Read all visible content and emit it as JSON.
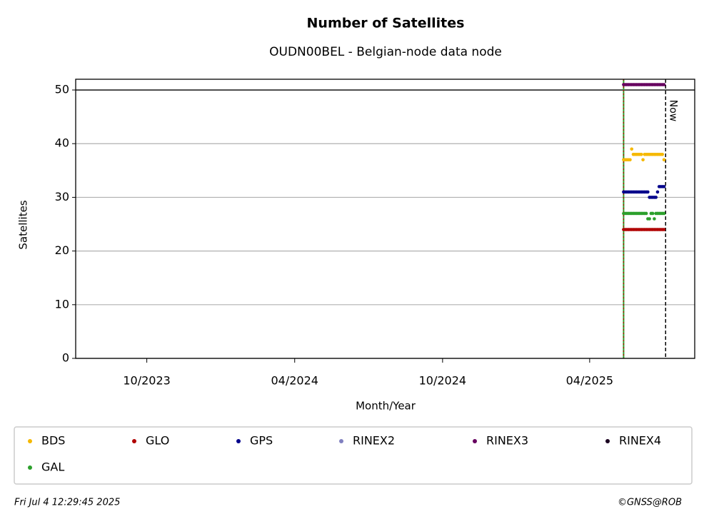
{
  "chart_data": {
    "type": "scatter",
    "title": "Number of Satellites",
    "subtitle": "OUDN00BEL - Belgian-node data node",
    "x_label": "Month/Year",
    "y_label": "Satellites",
    "xlim": [
      "2023-07-05",
      "2025-08-09"
    ],
    "xticks": [
      {
        "value": "2023-10-01",
        "label": "10/2023"
      },
      {
        "value": "2024-04-01",
        "label": "04/2024"
      },
      {
        "value": "2024-10-01",
        "label": "10/2024"
      },
      {
        "value": "2025-04-01",
        "label": "04/2025"
      }
    ],
    "ylim": [
      0,
      52
    ],
    "yticks": [
      0,
      10,
      20,
      30,
      40,
      50
    ],
    "grid": true,
    "hline": 50,
    "start_line": "2025-05-13",
    "now_line": "2025-07-04",
    "now_label": "Now",
    "x": [
      "2025-05-13",
      "2025-05-15",
      "2025-05-17",
      "2025-05-19",
      "2025-05-21",
      "2025-05-23",
      "2025-05-25",
      "2025-05-27",
      "2025-05-29",
      "2025-05-31",
      "2025-06-02",
      "2025-06-04",
      "2025-06-06",
      "2025-06-08",
      "2025-06-10",
      "2025-06-12",
      "2025-06-14",
      "2025-06-16",
      "2025-06-18",
      "2025-06-20",
      "2025-06-22",
      "2025-06-24",
      "2025-06-26",
      "2025-06-28",
      "2025-06-30",
      "2025-07-02"
    ],
    "series": [
      {
        "name": "BDS",
        "color": "#f5b800",
        "values": [
          37,
          37,
          37,
          37,
          37,
          39,
          38,
          38,
          38,
          38,
          38,
          38,
          37,
          38,
          38,
          38,
          38,
          38,
          38,
          38,
          38,
          38,
          38,
          38,
          38,
          37
        ]
      },
      {
        "name": "GLO",
        "color": "#b00000",
        "values": [
          24,
          24,
          24,
          24,
          24,
          24,
          24,
          24,
          24,
          24,
          24,
          24,
          24,
          24,
          24,
          24,
          24,
          24,
          24,
          24,
          24,
          24,
          24,
          24,
          24,
          24
        ]
      },
      {
        "name": "GPS",
        "color": "#00008b",
        "values": [
          31,
          31,
          31,
          31,
          31,
          31,
          31,
          31,
          31,
          31,
          31,
          31,
          31,
          31,
          31,
          31,
          30,
          30,
          30,
          30,
          30,
          31,
          32,
          32,
          32,
          32
        ]
      },
      {
        "name": "RINEX2",
        "color": "#8080c0",
        "values": [
          null,
          null,
          null,
          null,
          null,
          null,
          null,
          null,
          null,
          null,
          null,
          null,
          null,
          null,
          null,
          null,
          null,
          null,
          null,
          null,
          null,
          null,
          null,
          null,
          null,
          null
        ]
      },
      {
        "name": "RINEX3",
        "color": "#66005f",
        "values": [
          51,
          51,
          51,
          51,
          51,
          51,
          51,
          51,
          51,
          51,
          51,
          51,
          51,
          51,
          51,
          51,
          51,
          51,
          51,
          51,
          51,
          51,
          51,
          51,
          51,
          51
        ]
      },
      {
        "name": "RINEX4",
        "color": "#1a0020",
        "values": [
          null,
          null,
          null,
          null,
          null,
          null,
          null,
          null,
          null,
          null,
          null,
          null,
          null,
          null,
          null,
          null,
          null,
          null,
          null,
          null,
          null,
          null,
          null,
          null,
          null,
          null
        ]
      },
      {
        "name": "GAL",
        "color": "#2ca02c",
        "values": [
          27,
          27,
          27,
          27,
          27,
          27,
          27,
          27,
          27,
          27,
          27,
          27,
          27,
          27,
          27,
          26,
          26,
          27,
          27,
          26,
          27,
          27,
          27,
          27,
          27,
          27
        ]
      }
    ],
    "timestamp": "Fri Jul  4 12:29:45 2025",
    "credit": "©GNSS@ROB"
  }
}
